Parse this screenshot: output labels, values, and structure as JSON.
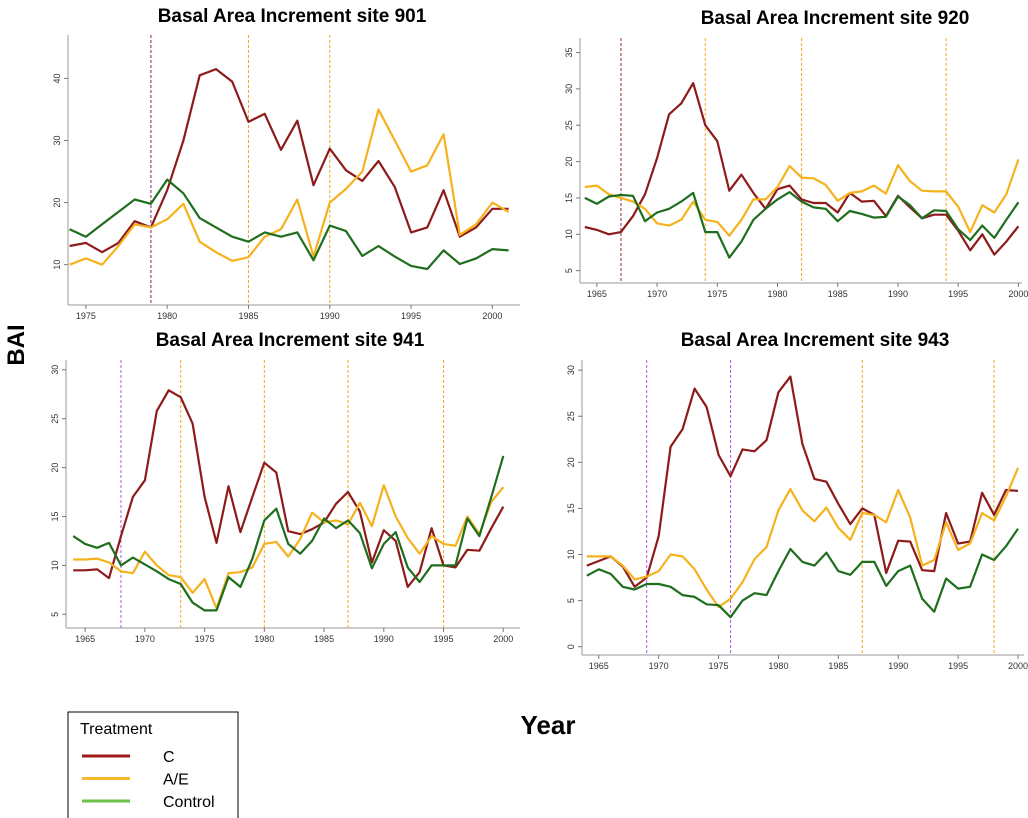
{
  "ylabel": "BAI",
  "xlabel": "Year",
  "legend": {
    "title": "Treatment",
    "entries": [
      {
        "name": "C",
        "color": "#a01818"
      },
      {
        "name": "A/E",
        "color": "#f7b929"
      },
      {
        "name": "Control",
        "color": "#6cc04a"
      }
    ]
  },
  "chart_data": [
    {
      "type": "line",
      "title": "Basal Area Increment site 901",
      "x": [
        1974,
        1975,
        1976,
        1977,
        1978,
        1979,
        1980,
        1981,
        1982,
        1983,
        1984,
        1985,
        1986,
        1987,
        1988,
        1989,
        1990,
        1991,
        1992,
        1993,
        1994,
        1995,
        1996,
        1997,
        1998,
        1999,
        2000,
        2001
      ],
      "series": [
        {
          "color": "#8e1b1b",
          "values": [
            13,
            13.5,
            12,
            13.5,
            17,
            16,
            22,
            30,
            40.5,
            41.5,
            39.5,
            33,
            34.3,
            28.5,
            33.2,
            22.8,
            28.7,
            25.2,
            23.5,
            26.7,
            22.5,
            15.2,
            16,
            22,
            14.5,
            16,
            19,
            19
          ]
        },
        {
          "color": "#f5b21c",
          "values": [
            10,
            11,
            10,
            13,
            16.5,
            16,
            17.3,
            19.8,
            13.7,
            12,
            10.6,
            11.2,
            14.5,
            15.7,
            20.5,
            11.3,
            20,
            22.2,
            25,
            35,
            30,
            25,
            26,
            31,
            14.8,
            16.5,
            20,
            18.5
          ]
        },
        {
          "color": "#1e6e1e",
          "values": [
            15.7,
            14.5,
            16.5,
            18.5,
            20.5,
            19.8,
            23.7,
            21.5,
            17.5,
            16,
            14.5,
            13.7,
            15.2,
            14.5,
            15.2,
            10.7,
            16.3,
            15.4,
            11.4,
            13,
            11.3,
            9.8,
            9.3,
            12.3,
            10.1,
            11,
            12.5,
            12.3
          ]
        }
      ],
      "vlines": [
        {
          "x": 1979,
          "color": "#8b2252"
        },
        {
          "x": 1985,
          "color": "#f5a623"
        },
        {
          "x": 1990,
          "color": "#f5a623"
        }
      ],
      "xlim": [
        1973.9,
        2001.7
      ],
      "ylim": [
        3.5,
        47
      ],
      "xticks": [
        1975,
        1980,
        1985,
        1990,
        1995,
        2000
      ],
      "yticks": [
        10,
        20,
        30,
        40
      ]
    },
    {
      "type": "line",
      "title": "Basal Area Increment site 920",
      "x": [
        1964,
        1965,
        1966,
        1967,
        1968,
        1969,
        1970,
        1971,
        1972,
        1973,
        1974,
        1975,
        1976,
        1977,
        1978,
        1979,
        1980,
        1981,
        1982,
        1983,
        1984,
        1985,
        1986,
        1987,
        1988,
        1989,
        1990,
        1991,
        1992,
        1993,
        1994,
        1995,
        1996,
        1997,
        1998,
        1999,
        2000
      ],
      "series": [
        {
          "color": "#8e1b1b",
          "values": [
            11,
            10.6,
            10,
            10.3,
            12.5,
            15.5,
            20.5,
            26.5,
            28,
            30.8,
            25,
            22.8,
            16,
            18.2,
            15.7,
            13.5,
            16.2,
            16.7,
            14.8,
            14.3,
            14.3,
            13,
            15.7,
            14.5,
            14.6,
            12.5,
            15.3,
            13.7,
            12.2,
            12.7,
            12.7,
            10.5,
            7.8,
            10,
            7.2,
            9,
            11.1
          ]
        },
        {
          "color": "#f5b21c",
          "values": [
            16.5,
            16.7,
            15.5,
            15,
            14.5,
            13.5,
            11.5,
            11.2,
            12,
            14.5,
            12,
            11.7,
            9.8,
            12,
            14.8,
            14.8,
            16.5,
            19.4,
            17.8,
            17.7,
            16.8,
            14.6,
            15.7,
            15.9,
            16.7,
            15.6,
            19.5,
            17.3,
            16,
            15.9,
            15.9,
            13.8,
            10.3,
            14,
            13,
            15.5,
            20.3
          ]
        },
        {
          "color": "#1e6e1e",
          "values": [
            15,
            14.2,
            15.2,
            15.4,
            15.3,
            11.8,
            13,
            13.5,
            14.5,
            15.7,
            10.3,
            10.3,
            6.8,
            9,
            12,
            13.5,
            14.8,
            15.8,
            14.5,
            13.7,
            13.5,
            11.8,
            13.2,
            12.8,
            12.3,
            12.4,
            15.2,
            14,
            12.2,
            13.3,
            13.2,
            10.7,
            9.2,
            11.2,
            9.5,
            12,
            14.4
          ]
        }
      ],
      "vlines": [
        {
          "x": 1967,
          "color": "#9b2a2a"
        },
        {
          "x": 1974,
          "color": "#f5a623"
        },
        {
          "x": 1982,
          "color": "#f5a623"
        },
        {
          "x": 1994,
          "color": "#f5a623"
        }
      ],
      "xlim": [
        1963.6,
        2000.3
      ],
      "ylim": [
        3.3,
        37
      ],
      "xticks": [
        1965,
        1970,
        1975,
        1980,
        1985,
        1990,
        1995,
        2000
      ],
      "yticks": [
        5,
        10,
        15,
        20,
        25,
        30,
        35
      ]
    },
    {
      "type": "line",
      "title": "Basal Area Increment site 941",
      "x": [
        1964,
        1965,
        1966,
        1967,
        1968,
        1969,
        1970,
        1971,
        1972,
        1973,
        1974,
        1975,
        1976,
        1977,
        1978,
        1979,
        1980,
        1981,
        1982,
        1983,
        1984,
        1985,
        1986,
        1987,
        1988,
        1989,
        1990,
        1991,
        1992,
        1993,
        1994,
        1995,
        1996,
        1997,
        1998,
        1999,
        2000
      ],
      "series": [
        {
          "color": "#8e1b1b",
          "values": [
            9.5,
            9.5,
            9.6,
            8.7,
            13,
            17,
            18.7,
            25.8,
            27.9,
            27.2,
            24.5,
            17,
            12.3,
            18.1,
            13.4,
            17,
            20.5,
            19.5,
            13.5,
            13.2,
            13.7,
            14.4,
            16.3,
            17.5,
            15.5,
            10.3,
            13.6,
            12.5,
            7.8,
            9.3,
            13.8,
            10,
            9.8,
            11.6,
            11.5,
            13.8,
            16
          ]
        },
        {
          "color": "#f5b21c",
          "values": [
            10.6,
            10.6,
            10.7,
            10.3,
            9.4,
            9.2,
            11.4,
            10,
            9,
            8.8,
            7.2,
            8.6,
            5.6,
            9.2,
            9.3,
            9.8,
            12.2,
            12.4,
            10.9,
            12.7,
            15.4,
            14.4,
            14.6,
            14.2,
            16.4,
            14,
            18.2,
            15,
            12.8,
            11.2,
            13,
            12.2,
            12,
            15,
            13.2,
            16.5,
            18
          ]
        },
        {
          "color": "#1e6e1e",
          "values": [
            13,
            12.2,
            11.8,
            12.3,
            10,
            10.8,
            10.1,
            9.4,
            8.6,
            8.1,
            6.2,
            5.4,
            5.4,
            8.8,
            7.8,
            10.7,
            14.6,
            15.8,
            12.2,
            11.2,
            12.5,
            14.8,
            13.8,
            14.6,
            13.3,
            9.7,
            12.2,
            13.4,
            9.8,
            8.3,
            10,
            10,
            10,
            14.8,
            13,
            17,
            21.2
          ]
        }
      ],
      "vlines": [
        {
          "x": 1968,
          "color": "#b05ce0"
        },
        {
          "x": 1973,
          "color": "#f5a623"
        },
        {
          "x": 1980,
          "color": "#f5a623"
        },
        {
          "x": 1987,
          "color": "#f5a623"
        },
        {
          "x": 1995,
          "color": "#f5a623"
        }
      ],
      "xlim": [
        1963.4,
        2001.4
      ],
      "ylim": [
        3.6,
        31
      ],
      "xticks": [
        1965,
        1970,
        1975,
        1980,
        1985,
        1990,
        1995,
        2000
      ],
      "yticks": [
        5,
        10,
        15,
        20,
        25,
        30
      ]
    },
    {
      "type": "line",
      "title": "Basal Area Increment site 943",
      "x": [
        1964,
        1965,
        1966,
        1967,
        1968,
        1969,
        1970,
        1971,
        1972,
        1973,
        1974,
        1975,
        1976,
        1977,
        1978,
        1979,
        1980,
        1981,
        1982,
        1983,
        1984,
        1985,
        1986,
        1987,
        1988,
        1989,
        1990,
        1991,
        1992,
        1993,
        1994,
        1995,
        1996,
        1997,
        1998,
        1999,
        2000
      ],
      "series": [
        {
          "color": "#8e1b1b",
          "values": [
            8.8,
            9.3,
            9.8,
            8.7,
            6.5,
            7.5,
            12,
            21.7,
            23.6,
            28,
            26,
            20.8,
            18.5,
            21.4,
            21.2,
            22.4,
            27.6,
            29.3,
            22,
            18.2,
            17.9,
            15.5,
            13.3,
            15,
            14.3,
            8,
            11.5,
            11.4,
            8.3,
            8.2,
            14.5,
            11.2,
            11.4,
            16.7,
            14.3,
            17,
            16.9
          ]
        },
        {
          "color": "#f5b21c",
          "values": [
            9.8,
            9.8,
            9.8,
            8.8,
            7.3,
            7.6,
            8.2,
            10,
            9.8,
            8.4,
            6.2,
            4.3,
            5.2,
            7,
            9.5,
            10.8,
            14.8,
            17.1,
            14.8,
            13.6,
            15.1,
            12.9,
            11.6,
            14.5,
            14.3,
            13.5,
            17,
            14,
            8.8,
            9.4,
            13.5,
            10.5,
            11.2,
            14.5,
            13.7,
            16.3,
            19.4
          ]
        },
        {
          "color": "#1e6e1e",
          "values": [
            7.7,
            8.4,
            7.9,
            6.5,
            6.2,
            6.8,
            6.8,
            6.5,
            5.6,
            5.4,
            4.6,
            4.5,
            3.2,
            5,
            5.8,
            5.6,
            8.2,
            10.6,
            9.2,
            8.8,
            10.2,
            8.2,
            7.8,
            9.2,
            9.2,
            6.6,
            8.2,
            8.8,
            5.2,
            3.8,
            7.4,
            6.3,
            6.5,
            10,
            9.4,
            10.9,
            12.8
          ]
        }
      ],
      "vlines": [
        {
          "x": 1969,
          "color": "#b05ce0"
        },
        {
          "x": 1976,
          "color": "#b05ce0"
        },
        {
          "x": 1987,
          "color": "#f5a623"
        },
        {
          "x": 1998,
          "color": "#f5a623"
        }
      ],
      "xlim": [
        1963.6,
        2000.5
      ],
      "ylim": [
        -0.9,
        31.1
      ],
      "xticks": [
        1965,
        1970,
        1975,
        1980,
        1985,
        1990,
        1995,
        2000
      ],
      "yticks": [
        0,
        5,
        10,
        15,
        20,
        25,
        30
      ]
    }
  ]
}
